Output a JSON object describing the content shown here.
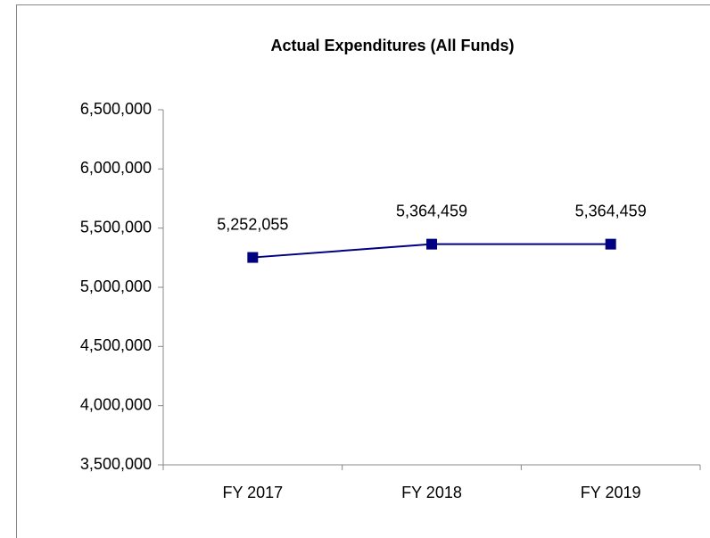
{
  "chart_data": {
    "type": "line",
    "title": "Actual Expenditures (All Funds)",
    "categories": [
      "FY 2017",
      "FY 2018",
      "FY 2019"
    ],
    "series": [
      {
        "name": "Actual Expenditures",
        "color": "#000080",
        "values": [
          5252055,
          5364459,
          5364459
        ],
        "value_labels": [
          "5,252,055",
          "5,364,459",
          "5,364,459"
        ]
      }
    ],
    "ylim": [
      3500000,
      6500000
    ],
    "yticks": [
      {
        "value": 3500000,
        "label": "3,500,000"
      },
      {
        "value": 4000000,
        "label": "4,000,000"
      },
      {
        "value": 4500000,
        "label": "4,500,000"
      },
      {
        "value": 5000000,
        "label": "5,000,000"
      },
      {
        "value": 5500000,
        "label": "5,500,000"
      },
      {
        "value": 6000000,
        "label": "6,000,000"
      },
      {
        "value": 6500000,
        "label": "6,500,000"
      }
    ],
    "grid": false
  }
}
